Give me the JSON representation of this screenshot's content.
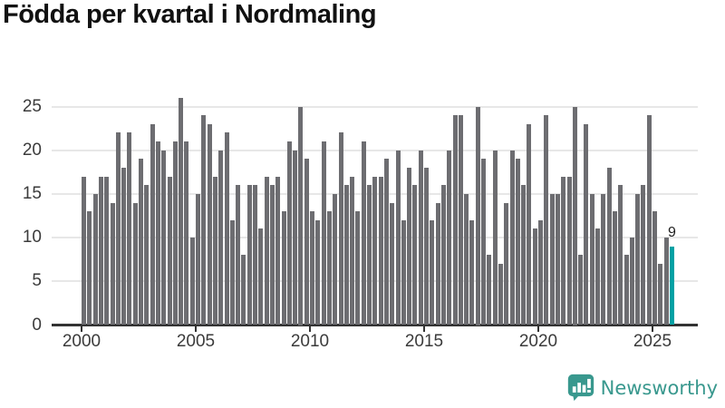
{
  "header": {
    "title": "Födda per kvartal i Nordmaling"
  },
  "chart_data": {
    "type": "bar",
    "title": "Födda per kvartal i Nordmaling",
    "frequency": "quarterly",
    "start_year": 2000,
    "start_quarter": 1,
    "end_year": 2025,
    "end_quarter": 4,
    "values": [
      17,
      13,
      15,
      17,
      17,
      14,
      22,
      18,
      22,
      14,
      19,
      16,
      23,
      21,
      20,
      17,
      21,
      26,
      21,
      10,
      15,
      24,
      23,
      17,
      20,
      22,
      12,
      16,
      8,
      16,
      16,
      11,
      17,
      16,
      17,
      13,
      21,
      20,
      25,
      19,
      13,
      12,
      21,
      13,
      15,
      22,
      16,
      17,
      13,
      21,
      16,
      17,
      17,
      19,
      14,
      20,
      12,
      18,
      16,
      20,
      18,
      12,
      14,
      16,
      20,
      24,
      24,
      15,
      12,
      25,
      19,
      8,
      20,
      7,
      14,
      20,
      19,
      16,
      23,
      11,
      12,
      24,
      15,
      15,
      17,
      17,
      25,
      8,
      23,
      15,
      11,
      15,
      18,
      13,
      16,
      8,
      10,
      15,
      16,
      24,
      13,
      7,
      10,
      9
    ],
    "xticks": [
      "2000",
      "2005",
      "2010",
      "2015",
      "2020",
      "2025"
    ],
    "yticks": [
      0,
      5,
      10,
      15,
      20,
      25
    ],
    "ylim": [
      0,
      27
    ],
    "grid": true,
    "legend": false,
    "bar_color": "#6d6d71",
    "highlight_last": true,
    "highlight_color": "#00a1a4",
    "last_value_label": "9"
  },
  "footer": {
    "logo_text": "Newsworthy",
    "logo_color": "#39988e"
  }
}
